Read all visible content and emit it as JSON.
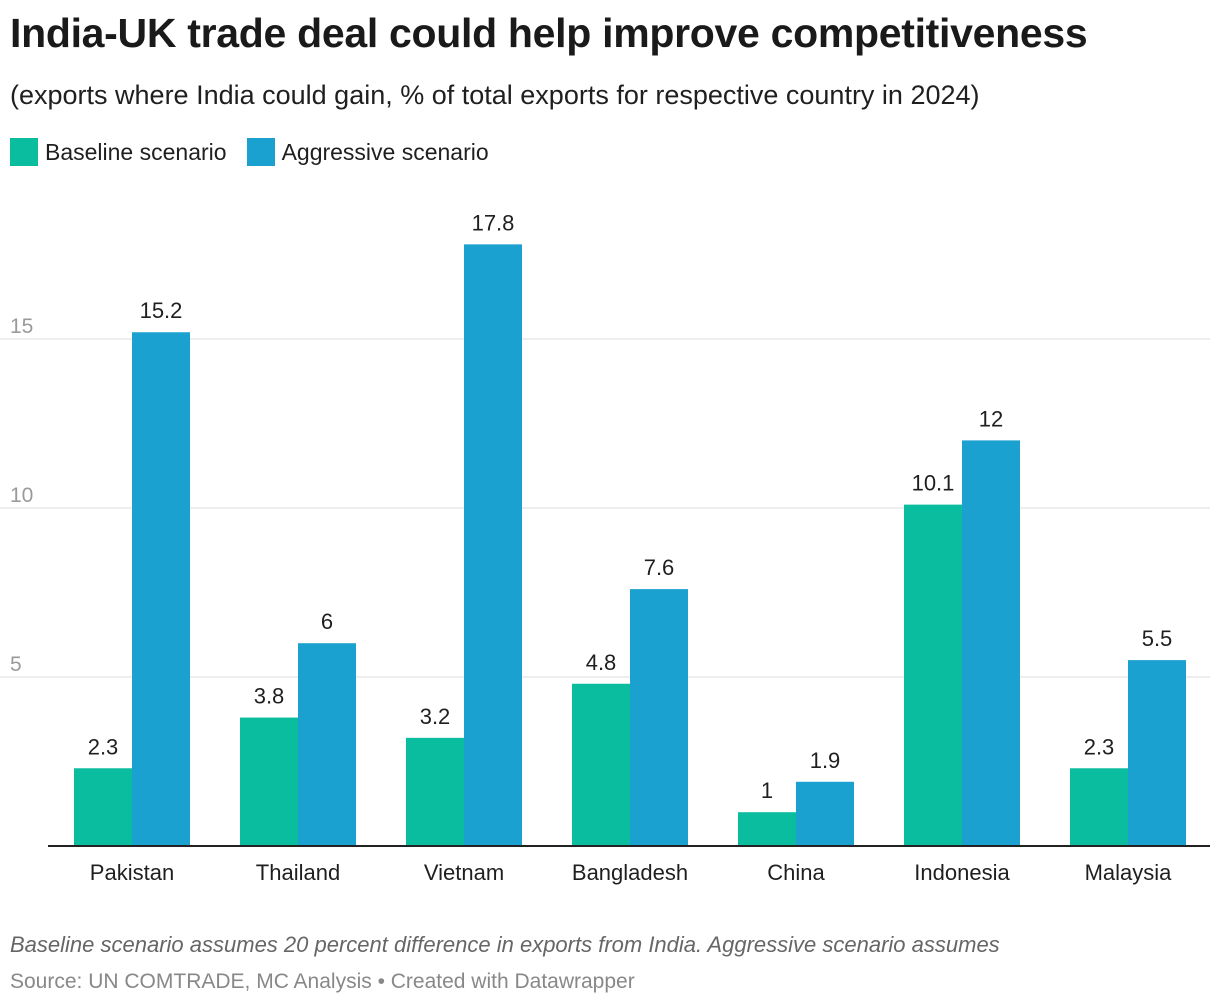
{
  "title": "India-UK trade deal could help improve competitiveness",
  "subtitle": "(exports where India could gain, % of total exports for respective country in 2024)",
  "note": "Baseline scenario assumes 20 percent difference in exports from India. Aggressive scenario assumes",
  "source": "Source: UN COMTRADE, MC Analysis • Created with Datawrapper",
  "colors": {
    "baseline": "#0bbd9f",
    "aggressive": "#1ba1cf"
  },
  "chart_data": {
    "type": "bar",
    "categories": [
      "Pakistan",
      "Thailand",
      "Vietnam",
      "Bangladesh",
      "China",
      "Indonesia",
      "Malaysia"
    ],
    "series": [
      {
        "name": "Baseline scenario",
        "values": [
          2.3,
          3.8,
          3.2,
          4.8,
          1,
          10.1,
          2.3
        ]
      },
      {
        "name": "Aggressive scenario",
        "values": [
          15.2,
          6,
          17.8,
          7.6,
          1.9,
          12,
          5.5
        ]
      }
    ],
    "yticks": [
      5,
      10,
      15
    ],
    "ylim": [
      0,
      20
    ],
    "grid": true,
    "legend": "top-left",
    "xlabel": "",
    "ylabel": ""
  }
}
